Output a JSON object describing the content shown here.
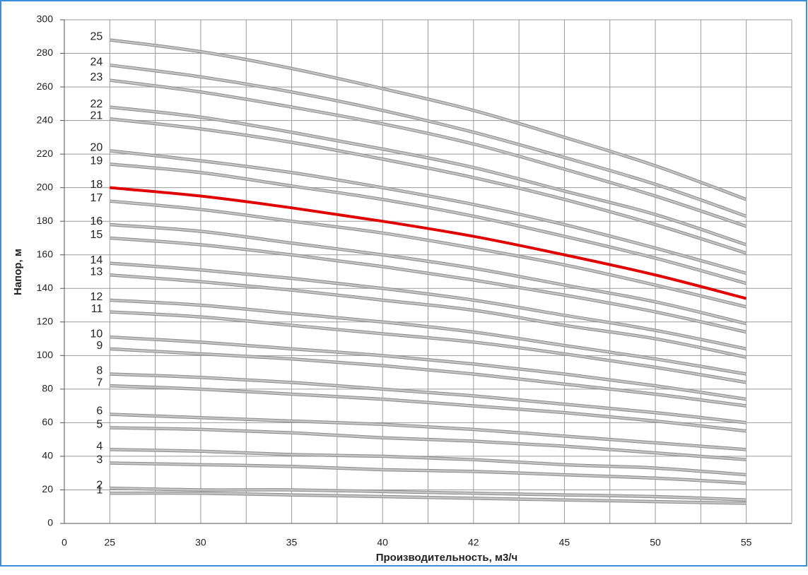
{
  "chart_data": {
    "type": "line",
    "ylabel": "Напор, м",
    "xlabel": "Производительность, м3/ч",
    "categories": [
      "0",
      "25",
      "30",
      "35",
      "40",
      "42",
      "45",
      "50",
      "55"
    ],
    "ylim": [
      0,
      300
    ],
    "yticks": [
      0,
      20,
      40,
      60,
      80,
      100,
      120,
      140,
      160,
      180,
      200,
      220,
      240,
      260,
      280,
      300
    ],
    "grid": true,
    "series": [
      {
        "name": "1",
        "color": "#c4c4c4",
        "values": [
          null,
          18,
          18,
          17,
          16,
          15,
          14,
          13,
          12
        ]
      },
      {
        "name": "2",
        "color": "#c4c4c4",
        "values": [
          null,
          21,
          20,
          20,
          19,
          18,
          17,
          16,
          14
        ]
      },
      {
        "name": "3",
        "color": "#c4c4c4",
        "values": [
          null,
          36,
          35,
          34,
          32,
          31,
          29,
          27,
          24
        ]
      },
      {
        "name": "4",
        "color": "#c4c4c4",
        "values": [
          null,
          44,
          43,
          41,
          40,
          38,
          35,
          33,
          29
        ]
      },
      {
        "name": "5",
        "color": "#c4c4c4",
        "values": [
          null,
          57,
          56,
          54,
          51,
          49,
          46,
          42,
          38
        ]
      },
      {
        "name": "6",
        "color": "#c4c4c4",
        "values": [
          null,
          65,
          63,
          61,
          59,
          56,
          52,
          48,
          44
        ]
      },
      {
        "name": "7",
        "color": "#c4c4c4",
        "values": [
          null,
          82,
          80,
          77,
          74,
          70,
          66,
          61,
          55
        ]
      },
      {
        "name": "8",
        "color": "#c4c4c4",
        "values": [
          null,
          89,
          87,
          84,
          80,
          76,
          71,
          66,
          60
        ]
      },
      {
        "name": "9",
        "color": "#c4c4c4",
        "values": [
          null,
          104,
          101,
          98,
          94,
          89,
          83,
          77,
          70
        ]
      },
      {
        "name": "10",
        "color": "#c4c4c4",
        "values": [
          null,
          111,
          108,
          104,
          100,
          95,
          89,
          82,
          74
        ]
      },
      {
        "name": "11",
        "color": "#c4c4c4",
        "values": [
          null,
          126,
          123,
          118,
          113,
          108,
          101,
          93,
          84
        ]
      },
      {
        "name": "12",
        "color": "#c4c4c4",
        "values": [
          null,
          133,
          130,
          125,
          120,
          114,
          106,
          98,
          89
        ]
      },
      {
        "name": "13",
        "color": "#c4c4c4",
        "values": [
          null,
          148,
          144,
          139,
          133,
          127,
          118,
          110,
          99
        ]
      },
      {
        "name": "14",
        "color": "#c4c4c4",
        "values": [
          null,
          155,
          151,
          146,
          140,
          133,
          124,
          115,
          104
        ]
      },
      {
        "name": "15",
        "color": "#c4c4c4",
        "values": [
          null,
          170,
          166,
          160,
          153,
          145,
          136,
          126,
          114
        ]
      },
      {
        "name": "16",
        "color": "#c4c4c4",
        "values": [
          null,
          178,
          174,
          167,
          160,
          152,
          142,
          132,
          119
        ]
      },
      {
        "name": "17",
        "color": "#c4c4c4",
        "values": [
          null,
          192,
          187,
          180,
          173,
          164,
          154,
          142,
          129
        ]
      },
      {
        "name": "18",
        "color": "#e00000",
        "values": [
          null,
          200,
          195,
          188,
          180,
          171,
          160,
          148,
          134
        ]
      },
      {
        "name": "19",
        "color": "#c4c4c4",
        "values": [
          null,
          214,
          209,
          201,
          193,
          183,
          171,
          158,
          143
        ]
      },
      {
        "name": "20",
        "color": "#c4c4c4",
        "values": [
          null,
          222,
          216,
          209,
          200,
          190,
          178,
          164,
          149
        ]
      },
      {
        "name": "21",
        "color": "#c4c4c4",
        "values": [
          null,
          241,
          235,
          227,
          217,
          206,
          193,
          178,
          161
        ]
      },
      {
        "name": "22",
        "color": "#c4c4c4",
        "values": [
          null,
          248,
          242,
          233,
          223,
          212,
          198,
          184,
          166
        ]
      },
      {
        "name": "23",
        "color": "#c4c4c4",
        "values": [
          null,
          264,
          257,
          248,
          238,
          226,
          211,
          195,
          177
        ]
      },
      {
        "name": "24",
        "color": "#c4c4c4",
        "values": [
          null,
          273,
          266,
          257,
          246,
          233,
          218,
          202,
          183
        ]
      },
      {
        "name": "25",
        "color": "#c4c4c4",
        "values": [
          null,
          288,
          281,
          271,
          259,
          246,
          230,
          213,
          193
        ]
      }
    ]
  }
}
